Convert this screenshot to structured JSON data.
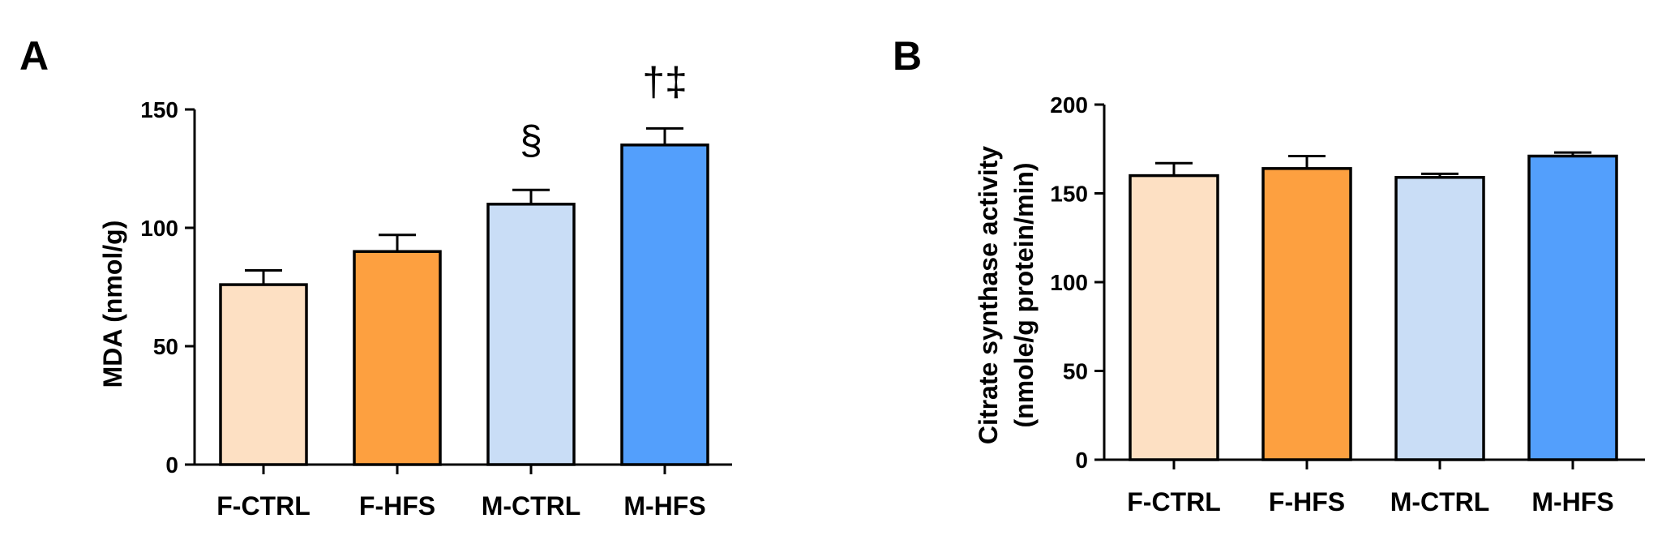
{
  "panels": [
    {
      "letter": "A",
      "ytitle": [
        "MDA (nmol/g)"
      ]
    },
    {
      "letter": "B",
      "ytitle": [
        "Citrate synthase activity",
        "(nmole/g protein/min)"
      ]
    }
  ],
  "colors": {
    "F-CTRL": "#fde0c3",
    "F-HFS": "#fda040",
    "M-CTRL": "#c9ddf6",
    "M-HFS": "#539ffc"
  },
  "chart_data": [
    {
      "type": "bar",
      "title": "",
      "xlabel": "",
      "ylabel": "MDA (nmol/g)",
      "categories": [
        "F-CTRL",
        "F-HFS",
        "M-CTRL",
        "M-HFS"
      ],
      "values": [
        76,
        90,
        110,
        135
      ],
      "errors": [
        6,
        7,
        6,
        7
      ],
      "annotations": [
        "",
        "",
        "§",
        "†‡"
      ],
      "ylim": [
        0,
        150
      ],
      "yticks": [
        0,
        50,
        100,
        150
      ],
      "grid": false
    },
    {
      "type": "bar",
      "title": "",
      "xlabel": "",
      "ylabel": "Citrate synthase activity (nmole/g protein/min)",
      "categories": [
        "F-CTRL",
        "F-HFS",
        "M-CTRL",
        "M-HFS"
      ],
      "values": [
        160,
        164,
        159,
        171
      ],
      "errors": [
        7,
        7,
        2,
        2
      ],
      "annotations": [
        "",
        "",
        "",
        ""
      ],
      "ylim": [
        0,
        200
      ],
      "yticks": [
        0,
        50,
        100,
        150,
        200
      ],
      "grid": false
    }
  ]
}
